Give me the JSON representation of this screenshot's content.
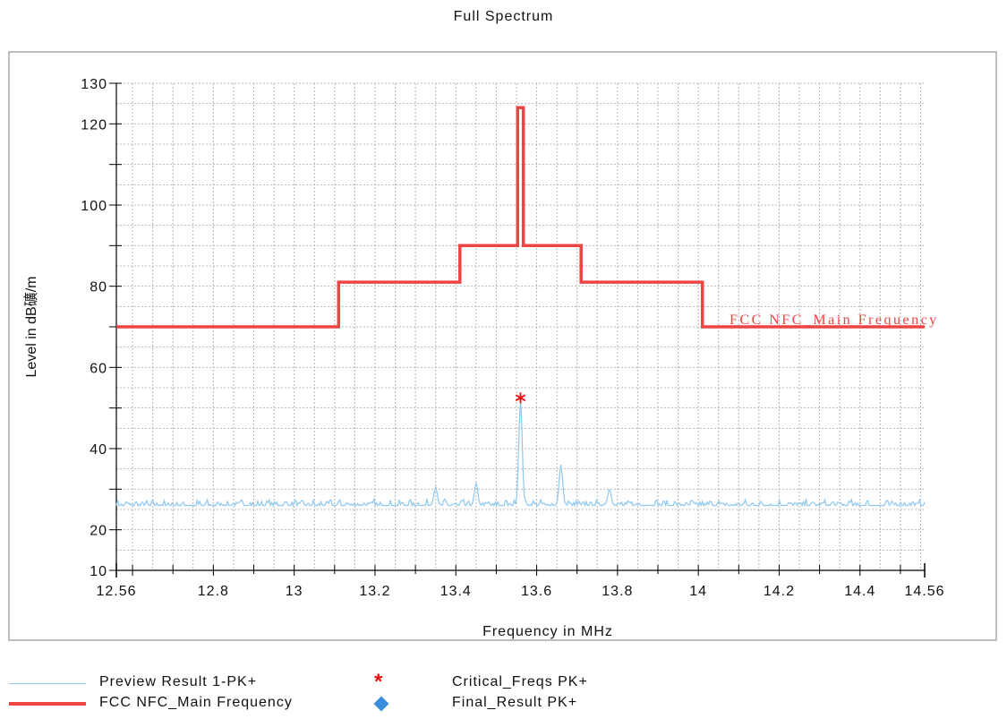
{
  "chart_data": {
    "type": "line",
    "title": "Full Spectrum",
    "xlabel": "Frequency in MHz",
    "ylabel": "Level in dB礦/m",
    "xlim": [
      12.56,
      14.56
    ],
    "ylim": [
      10,
      130
    ],
    "x_ticks": [
      "12.56",
      "12.8",
      "13",
      "13.2",
      "13.4",
      "13.6",
      "13.8",
      "14",
      "14.2",
      "14.4",
      "14.56"
    ],
    "y_ticks": [
      "10",
      "20",
      "40",
      "60",
      "80",
      "100",
      "120",
      "130"
    ],
    "grid": true,
    "colors": {
      "limit": "#ee4444",
      "preview": "#8ec8f0",
      "critical": "#e81010",
      "final": "#3a8fdc"
    },
    "limit_line": {
      "name": "FCC NFC_Main Frequency",
      "annotation": "FCC NFC_Main Frequency",
      "steps": [
        {
          "x": [
            12.56,
            13.11
          ],
          "y": 70
        },
        {
          "x": [
            13.11,
            13.41
          ],
          "y": 81
        },
        {
          "x": [
            13.41,
            13.553
          ],
          "y": 90
        },
        {
          "x": [
            13.553,
            13.567
          ],
          "y": 124
        },
        {
          "x": [
            13.567,
            13.71
          ],
          "y": 90
        },
        {
          "x": [
            13.71,
            14.01
          ],
          "y": 81
        },
        {
          "x": [
            14.01,
            14.56
          ],
          "y": 70
        }
      ]
    },
    "preview": {
      "name": "Preview Result 1-PK+",
      "baseline": 26,
      "noise": 1.2,
      "peaks": [
        {
          "x": 13.35,
          "y": 30.5
        },
        {
          "x": 13.45,
          "y": 31.5
        },
        {
          "x": 13.56,
          "y": 52
        },
        {
          "x": 13.66,
          "y": 36
        },
        {
          "x": 13.78,
          "y": 30
        }
      ]
    },
    "critical_freqs": {
      "name": "Critical_Freqs PK+",
      "points": [
        {
          "x": 13.56,
          "y": 52.5
        }
      ]
    },
    "final_result": {
      "name": "Final_Result PK+",
      "points": []
    }
  }
}
